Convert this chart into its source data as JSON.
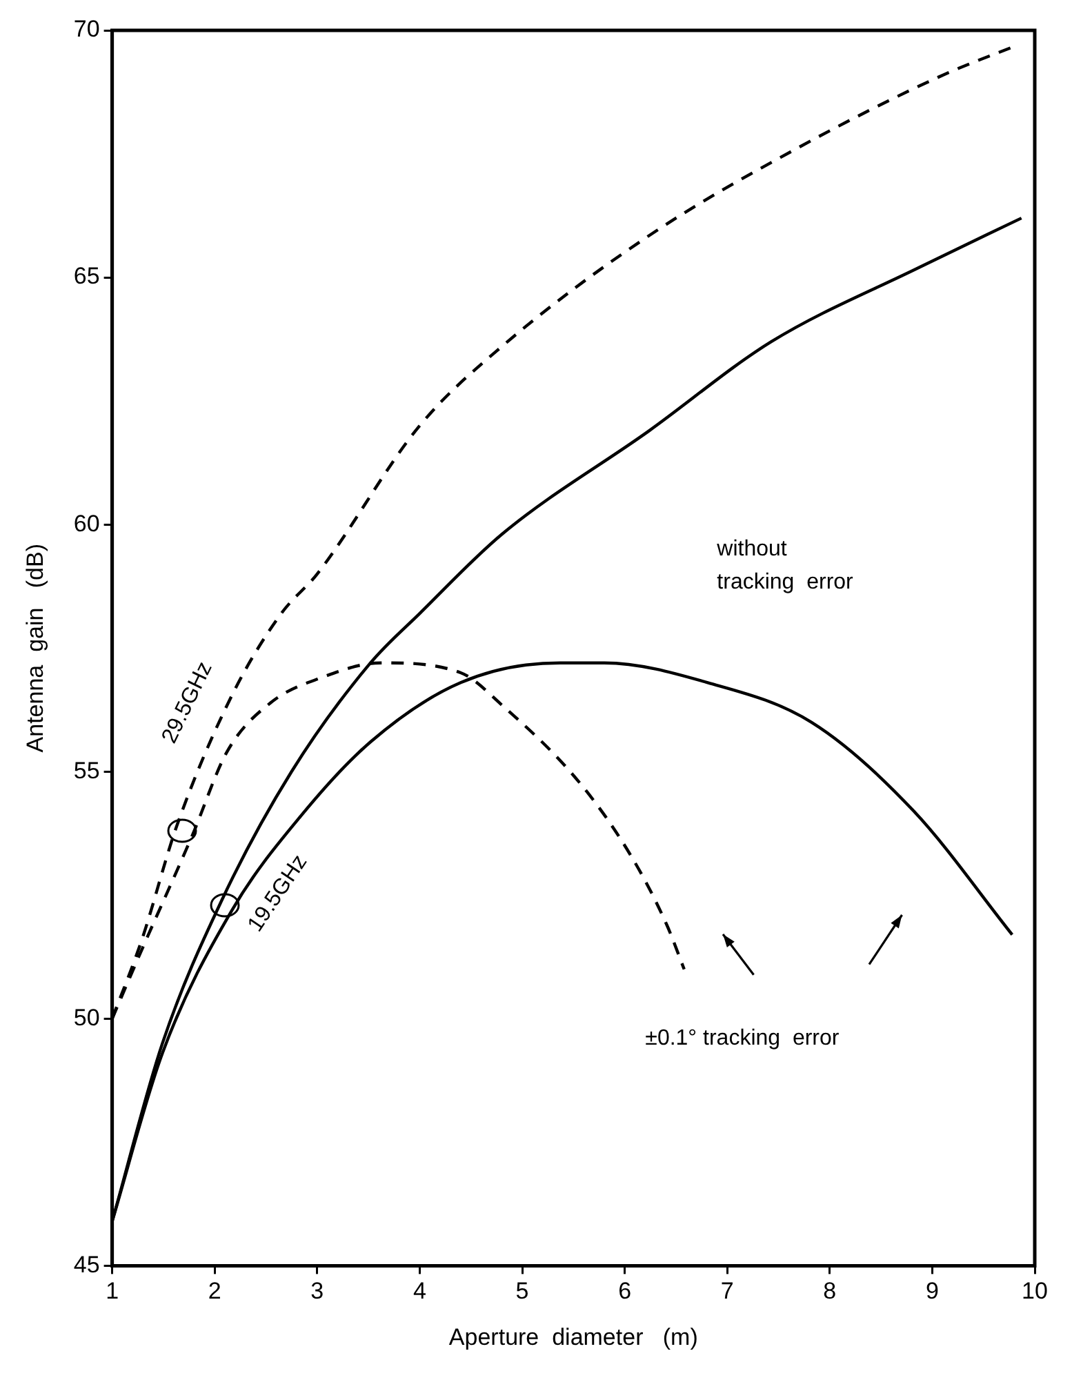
{
  "chart_data": {
    "type": "line",
    "xlabel": "Aperture  diameter   (m)",
    "ylabel": "Antenna  gain   (dB)",
    "xlim": [
      1,
      10
    ],
    "ylim": [
      45,
      70
    ],
    "xticks": [
      1,
      2,
      3,
      4,
      5,
      6,
      7,
      8,
      9,
      10
    ],
    "yticks": [
      45,
      50,
      55,
      60,
      65,
      70
    ],
    "marker": "none",
    "series": [
      {
        "color": "#000000",
        "line_style": "dashed",
        "x": [
          1,
          1.29,
          1.63,
          2.17,
          2.65,
          3,
          4,
          4.8,
          6.24,
          7.67,
          9.11,
          9.83
        ],
        "values": [
          50,
          51.6,
          53.9,
          56.55,
          58.2,
          59,
          62,
          63.6,
          65.85,
          67.6,
          69.1,
          69.7
        ]
      },
      {
        "color": "#000000",
        "line_style": "solid",
        "x": [
          1,
          1.49,
          2.07,
          2.75,
          3.52,
          4,
          4.8,
          6.24,
          7.43,
          8.87,
          9.87
        ],
        "values": [
          45.9,
          49.5,
          52.4,
          55,
          57.2,
          58.2,
          59.8,
          61.9,
          63.7,
          65.2,
          66.2
        ]
      },
      {
        "color": "#000000",
        "line_style": "dashed",
        "x": [
          1,
          1.29,
          1.78,
          2.12,
          2.55,
          3.04,
          3.62,
          4.4,
          4.8,
          5.55,
          6.06,
          6.41,
          6.58
        ],
        "values": [
          50,
          51.4,
          53.7,
          55.4,
          56.4,
          56.9,
          57.2,
          57,
          56.35,
          54.8,
          53.3,
          51.9,
          51
        ]
      },
      {
        "color": "#000000",
        "line_style": "solid",
        "x": [
          1,
          1.49,
          2.17,
          2.84,
          3.52,
          4.4,
          5.37,
          5.8,
          6.81,
          7.82,
          8.82,
          9.78
        ],
        "values": [
          45.9,
          49.3,
          52.2,
          54.1,
          55.6,
          56.8,
          57.2,
          57.2,
          56.8,
          56,
          54.2,
          51.7
        ]
      }
    ],
    "annotations": [
      "29.5GHz",
      "19.5GHz",
      "without\ntracking  error",
      "±0.1° tracking  error"
    ]
  }
}
